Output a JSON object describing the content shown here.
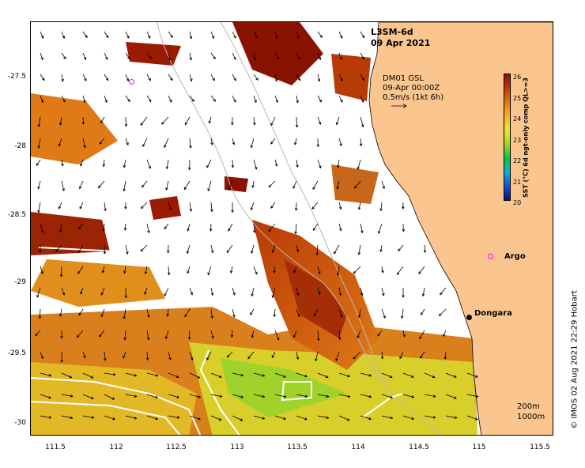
{
  "header": {
    "product": "L3SM-6d",
    "date": "09 Apr 2021"
  },
  "current_legend": {
    "source": "DM01 GSL",
    "time": "09-Apr 00:00Z",
    "scale": "0.5m/s (1kt 6h)"
  },
  "colorbar": {
    "label": "SST (°C)  6d ngt-only comp QL>=3",
    "ticks": [
      "26",
      "25",
      "24",
      "23",
      "22",
      "21",
      "20"
    ],
    "colors": [
      "#0b0b7a",
      "#1650d4",
      "#0fb3c9",
      "#0cc142",
      "#a4d61f",
      "#ece629",
      "#f2b228",
      "#e07a16",
      "#b83a05",
      "#8a1200"
    ]
  },
  "axes": {
    "y_ticks": [
      "-27.5",
      "-28",
      "-28.5",
      "-29",
      "-29.5",
      "-30"
    ],
    "x_ticks": [
      "111.5",
      "112",
      "112.5",
      "113",
      "113.5",
      "114",
      "114.5",
      "115",
      "115.5"
    ]
  },
  "places": {
    "argo_label": "Argo",
    "town_label": "Dongara"
  },
  "depth_legend": {
    "shallow": "200m",
    "deep": "1000m"
  },
  "copyright": "© IMOS 02 Aug 2021 22:29 Hobart",
  "colors": {
    "land": "#fbc58f",
    "argo_marker": "#ff00ff",
    "isobath": "#b8b8b8",
    "front": "#ffffff"
  }
}
